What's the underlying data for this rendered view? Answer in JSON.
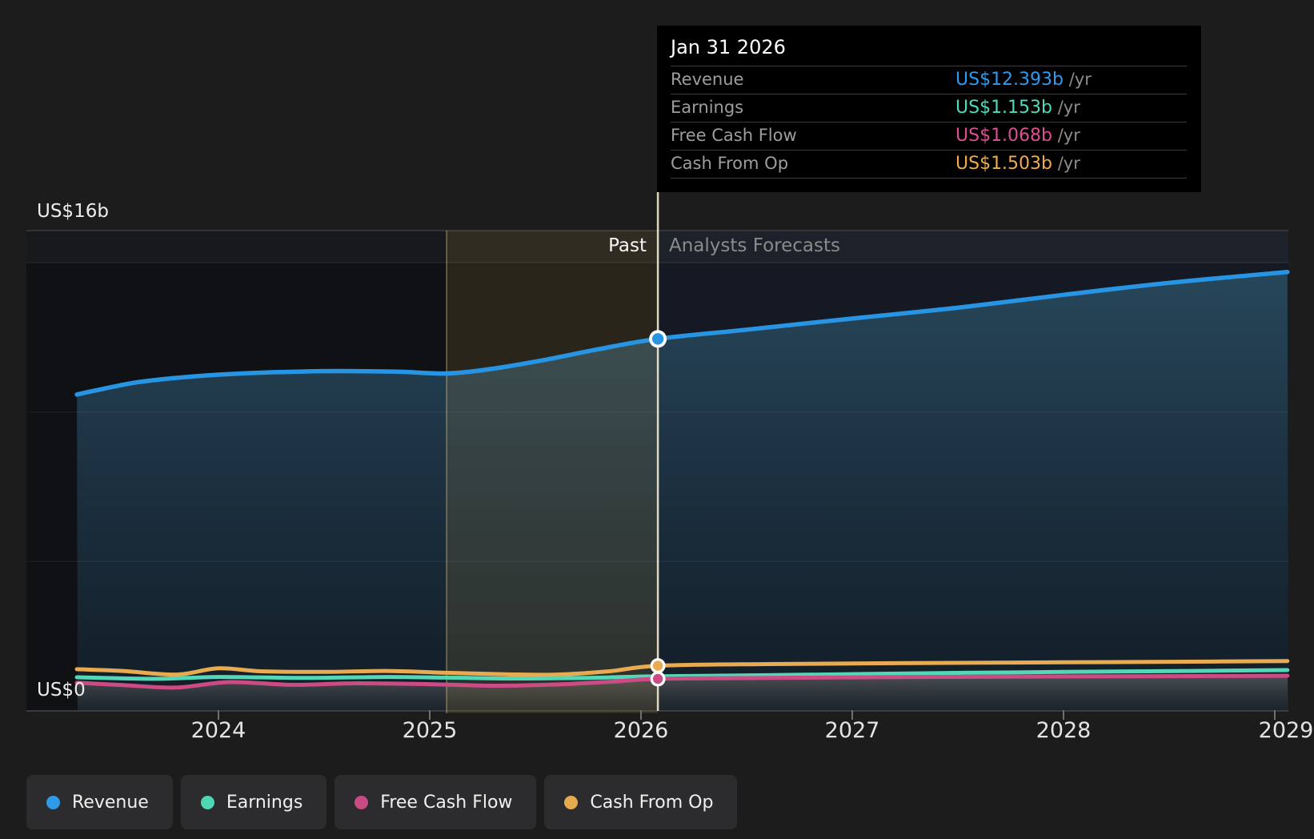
{
  "page": {
    "background": "#1c1c1c"
  },
  "y_axis": {
    "top_label": "US$16b",
    "zero_label": "US$0"
  },
  "x_axis": {
    "years": [
      "2024",
      "2025",
      "2026",
      "2027",
      "2028",
      "2029"
    ]
  },
  "header": {
    "past_label": "Past",
    "forecast_label": "Analysts Forecasts"
  },
  "tooltip": {
    "date": "Jan 31 2026",
    "rows": [
      {
        "label": "Revenue",
        "value": "US$12.393b",
        "unit": "/yr",
        "color": "#2f9bf0"
      },
      {
        "label": "Earnings",
        "value": "US$1.153b",
        "unit": "/yr",
        "color": "#4edbbd"
      },
      {
        "label": "Free Cash Flow",
        "value": "US$1.068b",
        "unit": "/yr",
        "color": "#dc4f90"
      },
      {
        "label": "Cash From Op",
        "value": "US$1.503b",
        "unit": "/yr",
        "color": "#f0ac4a"
      }
    ]
  },
  "legend": {
    "items": [
      {
        "label": "Revenue",
        "color": "#2f9be8"
      },
      {
        "label": "Earnings",
        "color": "#4fd6b4"
      },
      {
        "label": "Free Cash Flow",
        "color": "#c84b84"
      },
      {
        "label": "Cash From Op",
        "color": "#e5a94f"
      }
    ]
  },
  "chart_data": {
    "type": "area",
    "unit": "US$ billions per year",
    "x_range": [
      2023.33,
      2029.06
    ],
    "y_range": [
      0,
      16
    ],
    "x_ticks": [
      2024,
      2025,
      2026,
      2027,
      2028,
      2029
    ],
    "y_top_gridline_label": "US$16b",
    "y_zero_gridline_label": "US$0",
    "past_forecast_divider_year": 2026.08,
    "highlight_band": {
      "start_year": 2025.08,
      "end_year": 2026.08
    },
    "hover": {
      "date": "Jan 31 2026",
      "year": 2026.08,
      "values": {
        "Revenue": 12.393,
        "Earnings": 1.153,
        "Free Cash Flow": 1.068,
        "Cash From Op": 1.503
      }
    },
    "series": [
      {
        "name": "Revenue",
        "color": "#2795e3",
        "fill": "gradient-blue",
        "points": [
          [
            2023.33,
            10.54
          ],
          [
            2023.45,
            10.72
          ],
          [
            2023.6,
            10.93
          ],
          [
            2023.78,
            11.08
          ],
          [
            2024.0,
            11.2
          ],
          [
            2024.25,
            11.28
          ],
          [
            2024.55,
            11.32
          ],
          [
            2024.85,
            11.3
          ],
          [
            2025.08,
            11.24
          ],
          [
            2025.3,
            11.4
          ],
          [
            2025.55,
            11.7
          ],
          [
            2025.8,
            12.05
          ],
          [
            2026.08,
            12.393
          ],
          [
            2026.5,
            12.7
          ],
          [
            2027.0,
            13.07
          ],
          [
            2027.5,
            13.43
          ],
          [
            2028.0,
            13.86
          ],
          [
            2028.5,
            14.26
          ],
          [
            2029.06,
            14.62
          ]
        ]
      },
      {
        "name": "Cash From Op",
        "color": "#e9ab51",
        "fill": "none",
        "points": [
          [
            2023.33,
            1.39
          ],
          [
            2023.55,
            1.33
          ],
          [
            2023.8,
            1.21
          ],
          [
            2024.0,
            1.42
          ],
          [
            2024.2,
            1.32
          ],
          [
            2024.5,
            1.3
          ],
          [
            2024.8,
            1.33
          ],
          [
            2025.08,
            1.27
          ],
          [
            2025.35,
            1.22
          ],
          [
            2025.6,
            1.21
          ],
          [
            2025.85,
            1.32
          ],
          [
            2026.08,
            1.503
          ],
          [
            2026.6,
            1.56
          ],
          [
            2027.2,
            1.59
          ],
          [
            2028.0,
            1.62
          ],
          [
            2028.6,
            1.64
          ],
          [
            2029.06,
            1.66
          ]
        ]
      },
      {
        "name": "Earnings",
        "color": "#53d7b7",
        "fill": "none",
        "points": [
          [
            2023.33,
            1.12
          ],
          [
            2023.7,
            1.07
          ],
          [
            2024.0,
            1.13
          ],
          [
            2024.4,
            1.1
          ],
          [
            2024.8,
            1.13
          ],
          [
            2025.08,
            1.11
          ],
          [
            2025.4,
            1.08
          ],
          [
            2025.75,
            1.1
          ],
          [
            2026.08,
            1.153
          ],
          [
            2026.6,
            1.19
          ],
          [
            2027.3,
            1.25
          ],
          [
            2028.0,
            1.3
          ],
          [
            2028.6,
            1.33
          ],
          [
            2029.06,
            1.36
          ]
        ]
      },
      {
        "name": "Free Cash Flow",
        "color": "#cb4b85",
        "fill": "gradient-gray",
        "points": [
          [
            2023.33,
            0.94
          ],
          [
            2023.55,
            0.86
          ],
          [
            2023.8,
            0.78
          ],
          [
            2024.05,
            0.96
          ],
          [
            2024.35,
            0.87
          ],
          [
            2024.65,
            0.92
          ],
          [
            2025.0,
            0.89
          ],
          [
            2025.3,
            0.84
          ],
          [
            2025.6,
            0.88
          ],
          [
            2025.85,
            0.97
          ],
          [
            2026.08,
            1.068
          ],
          [
            2026.6,
            1.1
          ],
          [
            2027.3,
            1.13
          ],
          [
            2028.0,
            1.15
          ],
          [
            2028.6,
            1.16
          ],
          [
            2029.06,
            1.17
          ]
        ]
      }
    ],
    "markers": [
      {
        "series": "Revenue",
        "value": 12.393
      },
      {
        "series": "Cash From Op",
        "value": 1.503
      },
      {
        "series": "Free Cash Flow",
        "value": 1.068
      }
    ]
  }
}
